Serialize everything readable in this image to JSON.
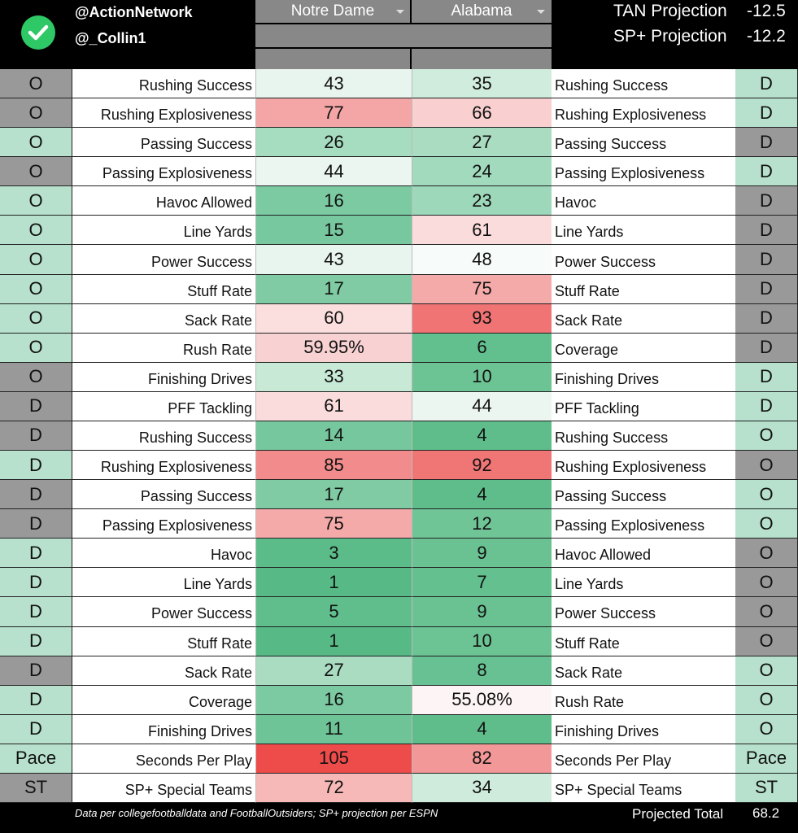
{
  "header": {
    "handles": [
      "@ActionNetwork",
      "@_Collin1"
    ],
    "columns": [
      "Notre Dame",
      "Alabama"
    ],
    "projections": [
      {
        "label": "TAN Projection",
        "value": -12.5
      },
      {
        "label": "SP+ Projection",
        "value": -12.2
      }
    ]
  },
  "rows": [
    {
      "left_tag": "O",
      "left_tag_color": "#999999",
      "left_label": "Rushing Success",
      "notre_dame": 43,
      "notre_dame_color": "#e8f5ee",
      "alabama": 35,
      "alabama_color": "#d0ecdc",
      "right_label": "Rushing Success",
      "right_tag": "D",
      "right_tag_color": "#b7e1cd"
    },
    {
      "left_tag": "O",
      "left_tag_color": "#999999",
      "left_label": "Rushing Explosiveness",
      "notre_dame": 77,
      "notre_dame_color": "#f4a6a6",
      "alabama": 66,
      "alabama_color": "#f9cfcf",
      "right_label": "Rushing Explosiveness",
      "right_tag": "D",
      "right_tag_color": "#b7e1cd"
    },
    {
      "left_tag": "O",
      "left_tag_color": "#b7e1cd",
      "left_label": "Passing Success",
      "notre_dame": 26,
      "notre_dame_color": "#a6dcc0",
      "alabama": 27,
      "alabama_color": "#aadcc2",
      "right_label": "Passing Success",
      "right_tag": "D",
      "right_tag_color": "#999999"
    },
    {
      "left_tag": "O",
      "left_tag_color": "#999999",
      "left_label": "Passing Explosiveness",
      "notre_dame": 44,
      "notre_dame_color": "#eaf6ef",
      "alabama": 24,
      "alabama_color": "#a2dabd",
      "right_label": "Passing Explosiveness",
      "right_tag": "D",
      "right_tag_color": "#b7e1cd"
    },
    {
      "left_tag": "O",
      "left_tag_color": "#b7e1cd",
      "left_label": "Havoc Allowed",
      "notre_dame": 16,
      "notre_dame_color": "#7ccaa2",
      "alabama": 23,
      "alabama_color": "#9ed8ba",
      "right_label": "Havoc",
      "right_tag": "D",
      "right_tag_color": "#999999"
    },
    {
      "left_tag": "O",
      "left_tag_color": "#b7e1cd",
      "left_label": "Line Yards",
      "notre_dame": 15,
      "notre_dame_color": "#78c89f",
      "alabama": 61,
      "alabama_color": "#fbdcdc",
      "right_label": "Line Yards",
      "right_tag": "D",
      "right_tag_color": "#999999"
    },
    {
      "left_tag": "O",
      "left_tag_color": "#b7e1cd",
      "left_label": "Power Success",
      "notre_dame": 43,
      "notre_dame_color": "#e8f5ee",
      "alabama": 48,
      "alabama_color": "#f7fbf9",
      "right_label": "Power Success",
      "right_tag": "D",
      "right_tag_color": "#999999"
    },
    {
      "left_tag": "O",
      "left_tag_color": "#b7e1cd",
      "left_label": "Stuff Rate",
      "notre_dame": 17,
      "notre_dame_color": "#80cba4",
      "alabama": 75,
      "alabama_color": "#f5aaaa",
      "right_label": "Stuff Rate",
      "right_tag": "D",
      "right_tag_color": "#999999"
    },
    {
      "left_tag": "O",
      "left_tag_color": "#b7e1cd",
      "left_label": "Sack Rate",
      "notre_dame": 60,
      "notre_dame_color": "#fbdede",
      "alabama": 93,
      "alabama_color": "#f07474",
      "right_label": "Sack Rate",
      "right_tag": "D",
      "right_tag_color": "#999999"
    },
    {
      "left_tag": "O",
      "left_tag_color": "#b7e1cd",
      "left_label": "Rush Rate",
      "notre_dame": "59.95%",
      "notre_dame_color": "#f8d2d2",
      "alabama": 6,
      "alabama_color": "#62bf8e",
      "right_label": "Coverage",
      "right_tag": "D",
      "right_tag_color": "#999999"
    },
    {
      "left_tag": "O",
      "left_tag_color": "#999999",
      "left_label": "Finishing Drives",
      "notre_dame": 33,
      "notre_dame_color": "#c8e9d6",
      "alabama": 10,
      "alabama_color": "#6cc394",
      "right_label": "Finishing Drives",
      "right_tag": "D",
      "right_tag_color": "#b7e1cd"
    },
    {
      "left_tag": "D",
      "left_tag_color": "#999999",
      "left_label": "PFF Tackling",
      "notre_dame": 61,
      "notre_dame_color": "#fbdcdc",
      "alabama": 44,
      "alabama_color": "#eaf6ef",
      "right_label": "PFF Tackling",
      "right_tag": "D",
      "right_tag_color": "#b7e1cd"
    },
    {
      "left_tag": "D",
      "left_tag_color": "#999999",
      "left_label": "Rushing Success",
      "notre_dame": 14,
      "notre_dame_color": "#76c79d",
      "alabama": 4,
      "alabama_color": "#5ebd8b",
      "right_label": "Rushing Success",
      "right_tag": "O",
      "right_tag_color": "#b7e1cd"
    },
    {
      "left_tag": "D",
      "left_tag_color": "#b7e1cd",
      "left_label": "Rushing Explosiveness",
      "notre_dame": 85,
      "notre_dame_color": "#f28c8c",
      "alabama": 92,
      "alabama_color": "#f07676",
      "right_label": "Rushing Explosiveness",
      "right_tag": "O",
      "right_tag_color": "#999999"
    },
    {
      "left_tag": "D",
      "left_tag_color": "#999999",
      "left_label": "Passing Success",
      "notre_dame": 17,
      "notre_dame_color": "#80cba4",
      "alabama": 4,
      "alabama_color": "#5ebd8b",
      "right_label": "Passing Success",
      "right_tag": "O",
      "right_tag_color": "#b7e1cd"
    },
    {
      "left_tag": "D",
      "left_tag_color": "#999999",
      "left_label": "Passing Explosiveness",
      "notre_dame": 75,
      "notre_dame_color": "#f5aaaa",
      "alabama": 12,
      "alabama_color": "#70c597",
      "right_label": "Passing Explosiveness",
      "right_tag": "O",
      "right_tag_color": "#b7e1cd"
    },
    {
      "left_tag": "D",
      "left_tag_color": "#b7e1cd",
      "left_label": "Havoc",
      "notre_dame": 3,
      "notre_dame_color": "#5bbc89",
      "alabama": 9,
      "alabama_color": "#6ac293",
      "right_label": "Havoc Allowed",
      "right_tag": "O",
      "right_tag_color": "#999999"
    },
    {
      "left_tag": "D",
      "left_tag_color": "#b7e1cd",
      "left_label": "Line Yards",
      "notre_dame": 1,
      "notre_dame_color": "#57ba86",
      "alabama": 7,
      "alabama_color": "#64c08f",
      "right_label": "Line Yards",
      "right_tag": "O",
      "right_tag_color": "#999999"
    },
    {
      "left_tag": "D",
      "left_tag_color": "#b7e1cd",
      "left_label": "Power Success",
      "notre_dame": 5,
      "notre_dame_color": "#60be8d",
      "alabama": 9,
      "alabama_color": "#6ac293",
      "right_label": "Power Success",
      "right_tag": "O",
      "right_tag_color": "#999999"
    },
    {
      "left_tag": "D",
      "left_tag_color": "#b7e1cd",
      "left_label": "Stuff Rate",
      "notre_dame": 1,
      "notre_dame_color": "#57ba86",
      "alabama": 10,
      "alabama_color": "#6cc394",
      "right_label": "Stuff Rate",
      "right_tag": "O",
      "right_tag_color": "#999999"
    },
    {
      "left_tag": "D",
      "left_tag_color": "#999999",
      "left_label": "Sack Rate",
      "notre_dame": 27,
      "notre_dame_color": "#aadcc2",
      "alabama": 8,
      "alabama_color": "#68c192",
      "right_label": "Sack Rate",
      "right_tag": "O",
      "right_tag_color": "#b7e1cd"
    },
    {
      "left_tag": "D",
      "left_tag_color": "#b7e1cd",
      "left_label": "Coverage",
      "notre_dame": 16,
      "notre_dame_color": "#7ccaa2",
      "alabama": "55.08%",
      "alabama_color": "#fdf5f5",
      "right_label": "Rush Rate",
      "right_tag": "O",
      "right_tag_color": "#b7e1cd"
    },
    {
      "left_tag": "D",
      "left_tag_color": "#b7e1cd",
      "left_label": "Finishing Drives",
      "notre_dame": 11,
      "notre_dame_color": "#6ec496",
      "alabama": 4,
      "alabama_color": "#5ebd8b",
      "right_label": "Finishing Drives",
      "right_tag": "O",
      "right_tag_color": "#b7e1cd"
    },
    {
      "left_tag": "Pace",
      "left_tag_color": "#b7e1cd",
      "left_label": "Seconds Per Play",
      "notre_dame": 105,
      "notre_dame_color": "#ee4b4b",
      "alabama": 82,
      "alabama_color": "#f39898",
      "right_label": "Seconds Per Play",
      "right_tag": "Pace",
      "right_tag_color": "#b7e1cd"
    },
    {
      "left_tag": "ST",
      "left_tag_color": "#999999",
      "left_label": "SP+ Special Teams",
      "notre_dame": 72,
      "notre_dame_color": "#f7b8b8",
      "alabama": 34,
      "alabama_color": "#cfebdb",
      "right_label": "SP+ Special Teams",
      "right_tag": "ST",
      "right_tag_color": "#b7e1cd"
    }
  ],
  "footer": {
    "note": "Data per collegefootballdata and FootballOutsiders; SP+ projection per ESPN",
    "total_label": "Projected Total",
    "total_value": 68.2
  }
}
